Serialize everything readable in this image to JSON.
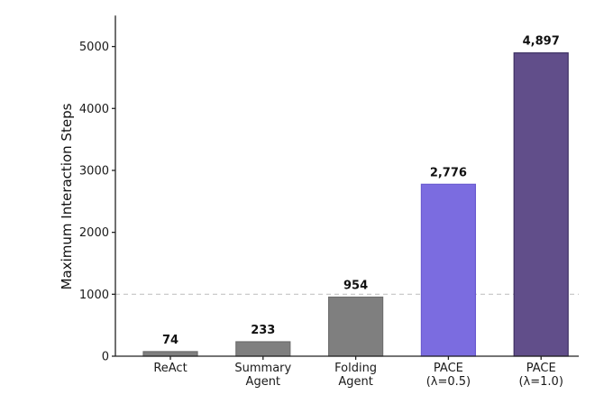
{
  "chart_data": {
    "type": "bar",
    "ylabel": "Maximum Interaction Steps",
    "ylim": [
      0,
      5500
    ],
    "yticks": [
      0,
      1000,
      2000,
      3000,
      4000,
      5000
    ],
    "reference_line": {
      "y": 1000,
      "style": "dashed"
    },
    "grid": false,
    "categories": [
      {
        "lines": [
          "ReAct"
        ]
      },
      {
        "lines": [
          "Summary",
          "Agent"
        ]
      },
      {
        "lines": [
          "Folding",
          "Agent"
        ]
      },
      {
        "lines": [
          "PACE",
          "(λ=0.5)"
        ]
      },
      {
        "lines": [
          "PACE",
          "(λ=1.0)"
        ]
      }
    ],
    "values": [
      74,
      233,
      954,
      2776,
      4897
    ],
    "value_labels": [
      "74",
      "233",
      "954",
      "2,776",
      "4,897"
    ],
    "colors": [
      "#7f7f7f",
      "#7f7f7f",
      "#7f7f7f",
      "#7b6ce0",
      "#614e8a"
    ],
    "edge_colors": [
      "#6e6e6e",
      "#6e6e6e",
      "#6e6e6e",
      "#6a5bd0",
      "#3d2f62"
    ]
  }
}
